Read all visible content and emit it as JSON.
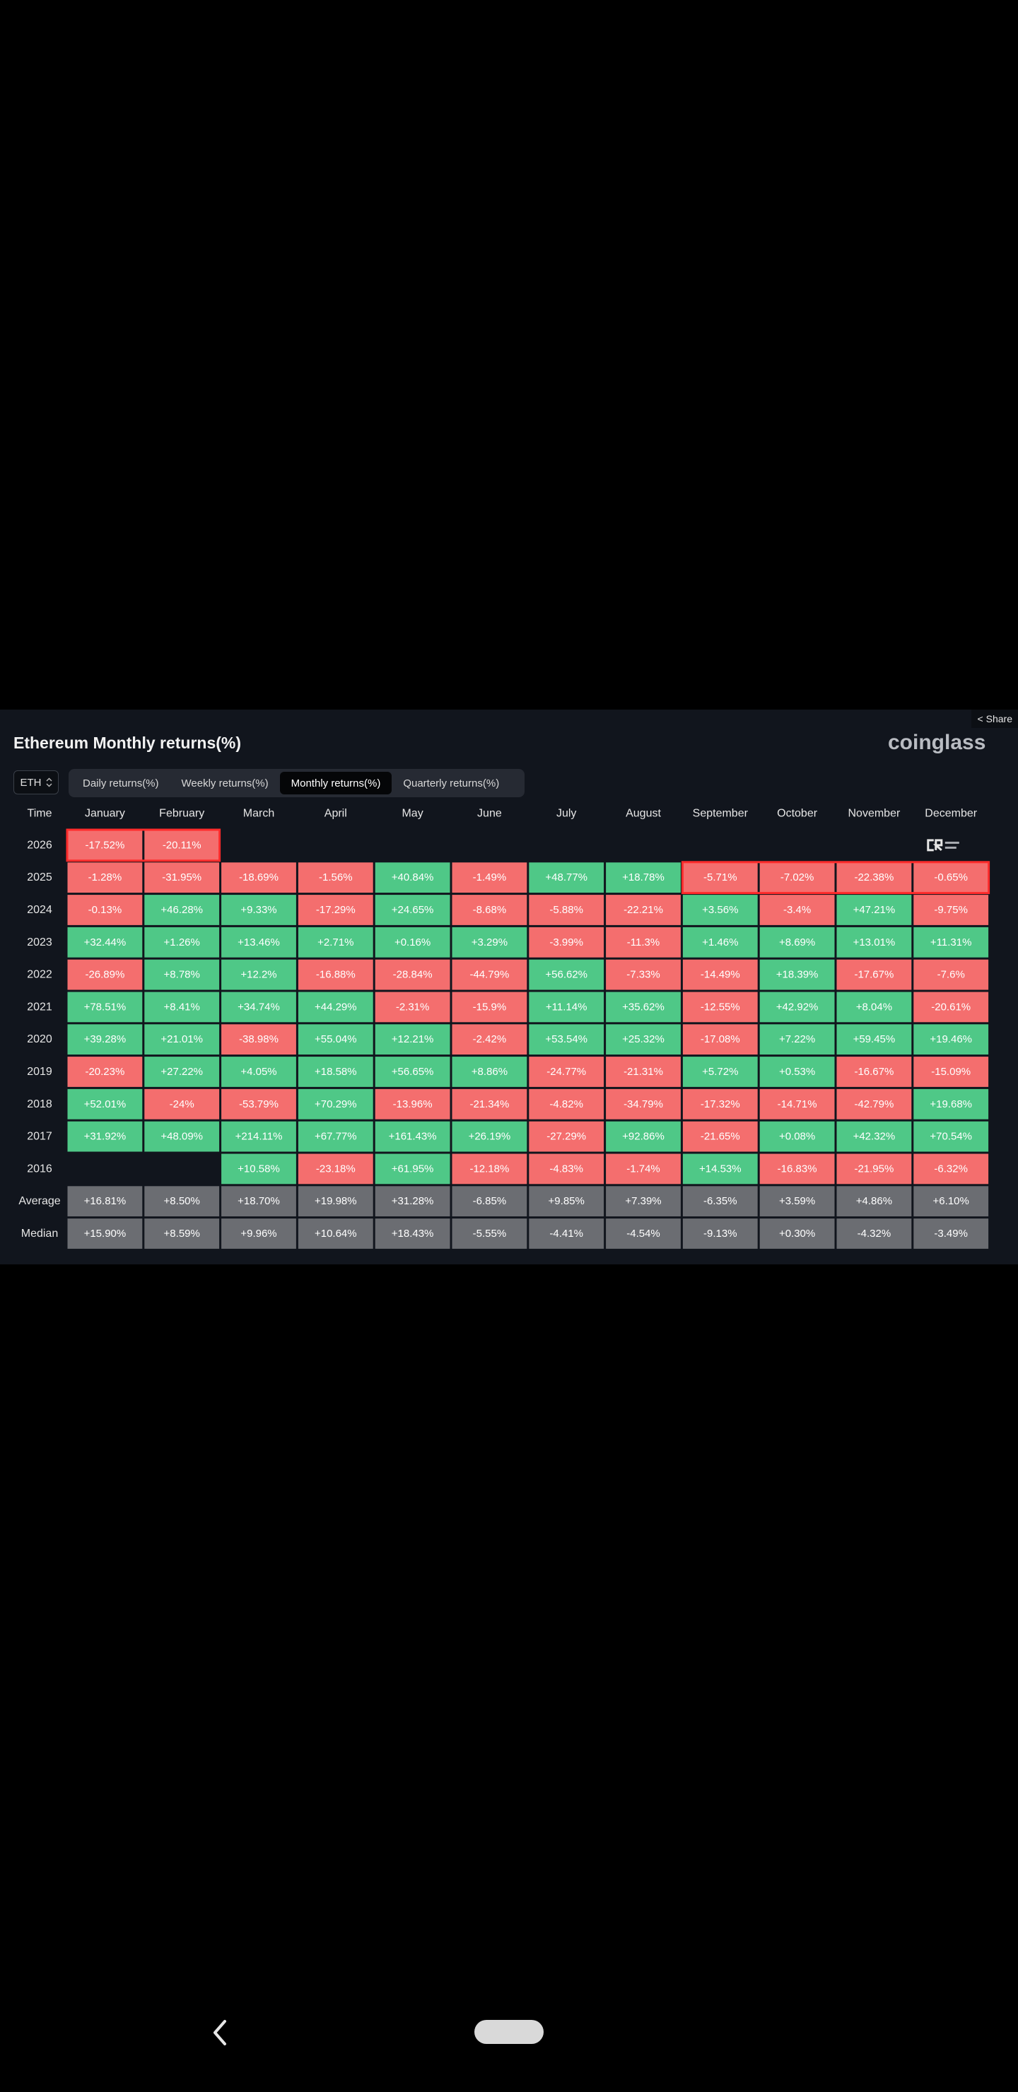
{
  "header": {
    "title": "Ethereum Monthly returns(%)",
    "brand": "coinglass",
    "share_label": "Share",
    "asset_select": "ETH",
    "watermark_icon": "crypto-rover-logo"
  },
  "tabs": [
    {
      "label": "Daily returns(%)",
      "active": false
    },
    {
      "label": "Weekly returns(%)",
      "active": false
    },
    {
      "label": "Monthly returns(%)",
      "active": true
    },
    {
      "label": "Quarterly returns(%)",
      "active": false
    }
  ],
  "colors": {
    "positive": "#4fc887",
    "negative": "#f46e6e",
    "summary": "#6b6d72",
    "highlight": "#ff2b2b"
  },
  "chart_data": {
    "type": "heatmap",
    "time_label": "Time",
    "columns": [
      "January",
      "February",
      "March",
      "April",
      "May",
      "June",
      "July",
      "August",
      "September",
      "October",
      "November",
      "December"
    ],
    "rows": [
      {
        "label": "2026",
        "values": [
          "-17.52%",
          "-20.11%",
          null,
          null,
          null,
          null,
          null,
          null,
          null,
          null,
          null,
          null
        ]
      },
      {
        "label": "2025",
        "values": [
          "-1.28%",
          "-31.95%",
          "-18.69%",
          "-1.56%",
          "+40.84%",
          "-1.49%",
          "+48.77%",
          "+18.78%",
          "-5.71%",
          "-7.02%",
          "-22.38%",
          "-0.65%"
        ]
      },
      {
        "label": "2024",
        "values": [
          "-0.13%",
          "+46.28%",
          "+9.33%",
          "-17.29%",
          "+24.65%",
          "-8.68%",
          "-5.88%",
          "-22.21%",
          "+3.56%",
          "-3.4%",
          "+47.21%",
          "-9.75%"
        ]
      },
      {
        "label": "2023",
        "values": [
          "+32.44%",
          "+1.26%",
          "+13.46%",
          "+2.71%",
          "+0.16%",
          "+3.29%",
          "-3.99%",
          "-11.3%",
          "+1.46%",
          "+8.69%",
          "+13.01%",
          "+11.31%"
        ]
      },
      {
        "label": "2022",
        "values": [
          "-26.89%",
          "+8.78%",
          "+12.2%",
          "-16.88%",
          "-28.84%",
          "-44.79%",
          "+56.62%",
          "-7.33%",
          "-14.49%",
          "+18.39%",
          "-17.67%",
          "-7.6%"
        ]
      },
      {
        "label": "2021",
        "values": [
          "+78.51%",
          "+8.41%",
          "+34.74%",
          "+44.29%",
          "-2.31%",
          "-15.9%",
          "+11.14%",
          "+35.62%",
          "-12.55%",
          "+42.92%",
          "+8.04%",
          "-20.61%"
        ]
      },
      {
        "label": "2020",
        "values": [
          "+39.28%",
          "+21.01%",
          "-38.98%",
          "+55.04%",
          "+12.21%",
          "-2.42%",
          "+53.54%",
          "+25.32%",
          "-17.08%",
          "+7.22%",
          "+59.45%",
          "+19.46%"
        ]
      },
      {
        "label": "2019",
        "values": [
          "-20.23%",
          "+27.22%",
          "+4.05%",
          "+18.58%",
          "+56.65%",
          "+8.86%",
          "-24.77%",
          "-21.31%",
          "+5.72%",
          "+0.53%",
          "-16.67%",
          "-15.09%"
        ]
      },
      {
        "label": "2018",
        "values": [
          "+52.01%",
          "-24%",
          "-53.79%",
          "+70.29%",
          "-13.96%",
          "-21.34%",
          "-4.82%",
          "-34.79%",
          "-17.32%",
          "-14.71%",
          "-42.79%",
          "+19.68%"
        ]
      },
      {
        "label": "2017",
        "values": [
          "+31.92%",
          "+48.09%",
          "+214.11%",
          "+67.77%",
          "+161.43%",
          "+26.19%",
          "-27.29%",
          "+92.86%",
          "-21.65%",
          "+0.08%",
          "+42.32%",
          "+70.54%"
        ]
      },
      {
        "label": "2016",
        "values": [
          null,
          null,
          "+10.58%",
          "-23.18%",
          "+61.95%",
          "-12.18%",
          "-4.83%",
          "-1.74%",
          "+14.53%",
          "-16.83%",
          "-21.95%",
          "-6.32%"
        ]
      }
    ],
    "summary_rows": [
      {
        "label": "Average",
        "values": [
          "+16.81%",
          "+8.50%",
          "+18.70%",
          "+19.98%",
          "+31.28%",
          "-6.85%",
          "+9.85%",
          "+7.39%",
          "-6.35%",
          "+3.59%",
          "+4.86%",
          "+6.10%"
        ]
      },
      {
        "label": "Median",
        "values": [
          "+15.90%",
          "+8.59%",
          "+9.96%",
          "+10.64%",
          "+18.43%",
          "-5.55%",
          "-4.41%",
          "-4.54%",
          "-9.13%",
          "+0.30%",
          "-4.32%",
          "-3.49%"
        ]
      }
    ],
    "highlight_boxes": [
      {
        "row": "2026",
        "from": "January",
        "to": "February"
      },
      {
        "row": "2025",
        "from": "September",
        "to": "December"
      }
    ]
  }
}
